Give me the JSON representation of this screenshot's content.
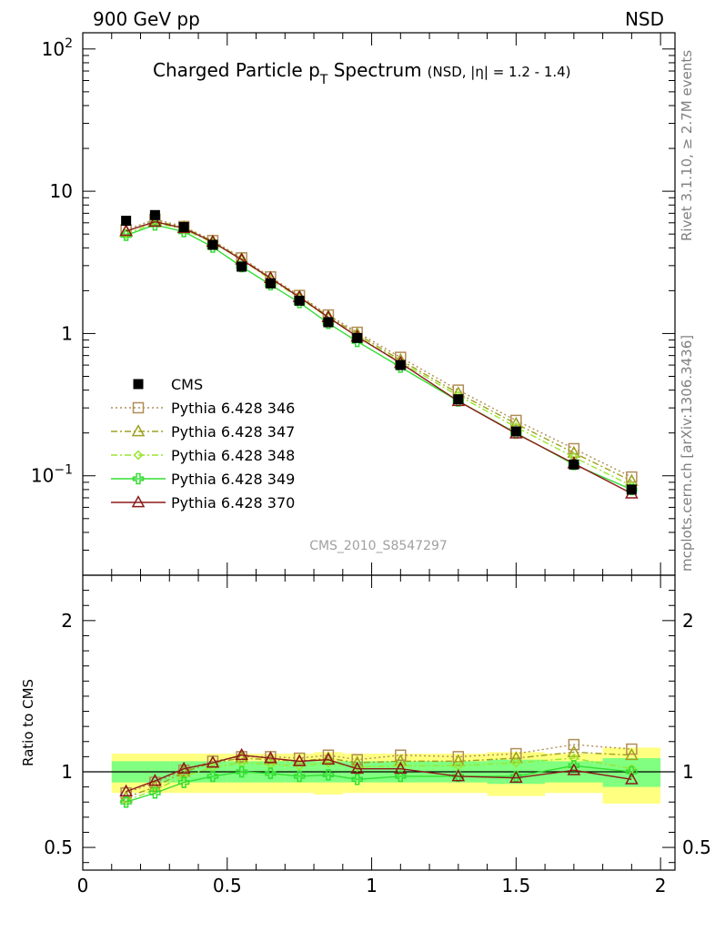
{
  "header": {
    "left": "900 GeV pp",
    "right": "NSD"
  },
  "side_labels": {
    "rivet": "Rivet 3.1.10, ≥ 2.7M events",
    "mcplots": "mcplots.cern.ch [arXiv:1306.3436]"
  },
  "analysis_id": "CMS_2010_S8547297",
  "chart_data": [
    {
      "type": "scatter",
      "panel": "main",
      "title": "Charged Particle p",
      "title_sub": "T",
      "title_rest": " Spectrum",
      "title_note": "(NSD, |η| = 1.2 - 1.4)",
      "xlabel": "",
      "ylabel": "",
      "xlim": [
        0,
        2.05
      ],
      "ylim": [
        0.02,
        130
      ],
      "yscale": "log",
      "xticks": [
        "0",
        "0.5",
        "1",
        "1.5",
        "2"
      ],
      "yticks": [
        {
          "value": 100,
          "label": "10",
          "sup": "2"
        },
        {
          "value": 10,
          "label": "10",
          "sup": ""
        },
        {
          "value": 1,
          "label": "1",
          "sup": ""
        },
        {
          "value": 0.1,
          "label": "10",
          "sup": "−1"
        }
      ],
      "legend_position": "left",
      "x": [
        0.15,
        0.25,
        0.35,
        0.45,
        0.55,
        0.65,
        0.75,
        0.85,
        0.95,
        1.1,
        1.3,
        1.5,
        1.7,
        1.9
      ],
      "series": [
        {
          "name": "CMS",
          "color": "#000000",
          "marker": "square-filled",
          "line": "none",
          "values": [
            6.2,
            6.8,
            5.6,
            4.2,
            2.95,
            2.25,
            1.7,
            1.2,
            0.93,
            0.6,
            0.345,
            0.205,
            0.12,
            0.08
          ]
        },
        {
          "name": "Pythia 6.428 346",
          "color": "#b08d57",
          "marker": "square-open",
          "line": "dotted",
          "values": [
            5.35,
            6.35,
            5.65,
            4.5,
            3.4,
            2.5,
            1.85,
            1.35,
            1.02,
            0.68,
            0.4,
            0.245,
            0.155,
            0.098
          ]
        },
        {
          "name": "Pythia 6.428 347",
          "color": "#a0a020",
          "marker": "triangle-open",
          "line": "dashdot",
          "values": [
            5.2,
            6.2,
            5.55,
            4.45,
            3.35,
            2.45,
            1.82,
            1.32,
            0.99,
            0.65,
            0.38,
            0.232,
            0.145,
            0.092
          ]
        },
        {
          "name": "Pythia 6.428 348",
          "color": "#99e62e",
          "marker": "diamond-open",
          "line": "dashdot",
          "values": [
            5.0,
            6.0,
            5.4,
            4.35,
            3.3,
            2.4,
            1.78,
            1.29,
            0.96,
            0.63,
            0.365,
            0.22,
            0.135,
            0.085
          ]
        },
        {
          "name": "Pythia 6.428 349",
          "color": "#33dd33",
          "marker": "cross-open",
          "line": "solid",
          "values": [
            4.9,
            5.8,
            5.2,
            4.05,
            2.95,
            2.2,
            1.65,
            1.18,
            0.88,
            0.58,
            0.335,
            0.2,
            0.12,
            0.08
          ]
        },
        {
          "name": "Pythia 6.428 370",
          "color": "#8b1a1a",
          "marker": "triangle-open",
          "line": "solid",
          "values": [
            5.25,
            6.1,
            5.5,
            4.4,
            3.3,
            2.45,
            1.8,
            1.3,
            0.95,
            0.62,
            0.335,
            0.198,
            0.122,
            0.075
          ]
        }
      ]
    },
    {
      "type": "scatter",
      "panel": "ratio",
      "xlabel": "",
      "ylabel": "Ratio to CMS",
      "xlim": [
        0,
        2.05
      ],
      "ylim": [
        0.35,
        2.3
      ],
      "reference_line": 1,
      "xticks": [
        "0",
        "0.5",
        "1",
        "1.5",
        "2"
      ],
      "yticks": [
        {
          "value": 0.5,
          "label": "0.5"
        },
        {
          "value": 1,
          "label": "1"
        },
        {
          "value": 2,
          "label": "2"
        }
      ],
      "x": [
        0.15,
        0.25,
        0.35,
        0.45,
        0.55,
        0.65,
        0.75,
        0.85,
        0.95,
        1.1,
        1.3,
        1.5,
        1.7,
        1.9
      ],
      "bins": [
        [
          0.1,
          0.2
        ],
        [
          0.2,
          0.3
        ],
        [
          0.3,
          0.4
        ],
        [
          0.4,
          0.5
        ],
        [
          0.5,
          0.6
        ],
        [
          0.6,
          0.7
        ],
        [
          0.7,
          0.8
        ],
        [
          0.8,
          0.9
        ],
        [
          0.9,
          1.0
        ],
        [
          1.0,
          1.2
        ],
        [
          1.2,
          1.4
        ],
        [
          1.4,
          1.6
        ],
        [
          1.6,
          1.8
        ],
        [
          1.8,
          2.0
        ]
      ],
      "band_stat": {
        "color": "#80ff80",
        "low": [
          0.93,
          0.93,
          0.93,
          0.93,
          0.93,
          0.93,
          0.93,
          0.93,
          0.93,
          0.93,
          0.93,
          0.92,
          0.93,
          0.9
        ],
        "high": [
          1.07,
          1.07,
          1.07,
          1.07,
          1.07,
          1.07,
          1.07,
          1.07,
          1.07,
          1.07,
          1.07,
          1.08,
          1.07,
          1.09
        ]
      },
      "band_total": {
        "color": "#ffff80",
        "low": [
          0.86,
          0.86,
          0.86,
          0.86,
          0.86,
          0.86,
          0.86,
          0.85,
          0.86,
          0.86,
          0.86,
          0.84,
          0.86,
          0.79
        ],
        "high": [
          1.12,
          1.12,
          1.12,
          1.12,
          1.12,
          1.12,
          1.12,
          1.13,
          1.12,
          1.12,
          1.12,
          1.13,
          1.12,
          1.16
        ]
      },
      "series": [
        {
          "name": "Pythia 6.428 346",
          "color": "#b08d57",
          "marker": "square-open",
          "line": "dotted",
          "values": [
            0.86,
            0.93,
            1.01,
            1.07,
            1.1,
            1.1,
            1.09,
            1.11,
            1.08,
            1.11,
            1.1,
            1.12,
            1.18,
            1.15
          ]
        },
        {
          "name": "Pythia 6.428 347",
          "color": "#a0a020",
          "marker": "triangle-open",
          "line": "dashdot",
          "values": [
            0.83,
            0.9,
            1.0,
            1.06,
            1.09,
            1.08,
            1.07,
            1.09,
            1.06,
            1.07,
            1.07,
            1.09,
            1.13,
            1.11
          ]
        },
        {
          "name": "Pythia 6.428 348",
          "color": "#99e62e",
          "marker": "diamond-open",
          "line": "dashdot",
          "values": [
            0.81,
            0.88,
            0.97,
            1.03,
            1.06,
            1.05,
            1.04,
            1.06,
            1.03,
            1.04,
            1.04,
            1.06,
            1.09,
            1.02
          ]
        },
        {
          "name": "Pythia 6.428 349",
          "color": "#33dd33",
          "marker": "cross-open",
          "line": "solid",
          "values": [
            0.8,
            0.86,
            0.93,
            0.97,
            1.0,
            0.99,
            0.97,
            0.98,
            0.95,
            0.97,
            0.97,
            0.97,
            1.04,
            1.0
          ]
        },
        {
          "name": "Pythia 6.428 370",
          "color": "#8b1a1a",
          "marker": "triangle-open",
          "line": "solid",
          "values": [
            0.87,
            0.94,
            1.02,
            1.06,
            1.11,
            1.09,
            1.07,
            1.08,
            1.02,
            1.02,
            0.97,
            0.96,
            1.01,
            0.95
          ]
        }
      ]
    }
  ]
}
